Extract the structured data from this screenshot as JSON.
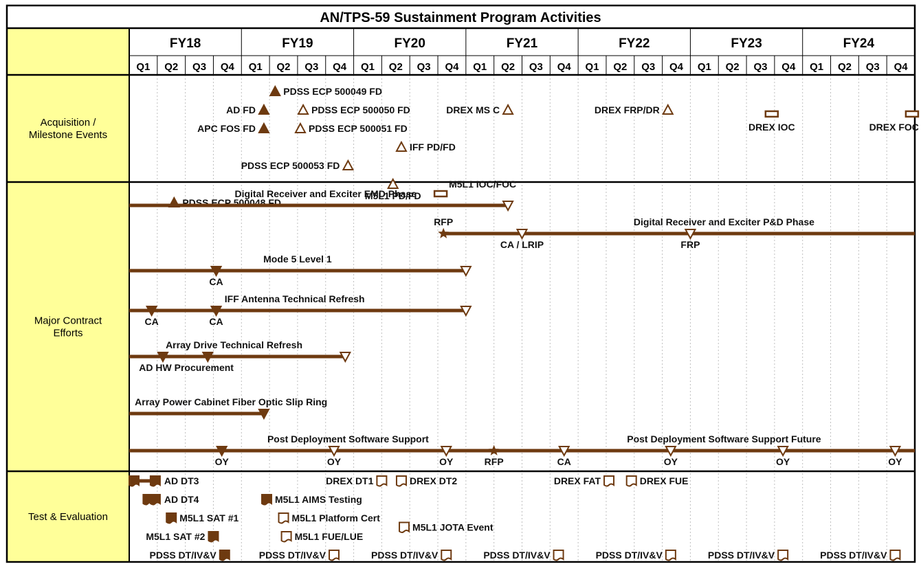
{
  "chart_data": {
    "type": "gantt",
    "title": "AN/TPS-59 Sustainment Program Activities",
    "fiscal_years": [
      "FY18",
      "FY19",
      "FY20",
      "FY21",
      "FY22",
      "FY23",
      "FY24"
    ],
    "quarters": [
      "Q1",
      "Q2",
      "Q3",
      "Q4"
    ],
    "colors": {
      "brown": "#6E3A10",
      "header_fill": "#FFFF99",
      "grid": "#000000"
    },
    "sections": [
      {
        "label": "Acquisition / Milestone Events",
        "lines": [
          "Acquisition /",
          "Milestone Events"
        ],
        "items": [
          {
            "kind": "milestone",
            "symbol": "filled-triangle",
            "q": 5.2,
            "row": 0,
            "label": "PDSS ECP 500049 FD",
            "label_side": "right"
          },
          {
            "kind": "milestone",
            "symbol": "filled-triangle",
            "q": 4.8,
            "row": 1,
            "label": "AD FD",
            "label_side": "left"
          },
          {
            "kind": "milestone",
            "symbol": "open-triangle",
            "q": 6.2,
            "row": 1,
            "label": "PDSS ECP 500050 FD",
            "label_side": "right"
          },
          {
            "kind": "milestone",
            "symbol": "open-triangle",
            "q": 13.5,
            "row": 1,
            "label": "DREX MS C",
            "label_side": "left"
          },
          {
            "kind": "milestone",
            "symbol": "open-triangle",
            "q": 19.2,
            "row": 1,
            "label": "DREX FRP/DR",
            "label_side": "left"
          },
          {
            "kind": "milestone",
            "symbol": "open-rect",
            "q": 22.9,
            "row": 0.7,
            "label": "DREX IOC",
            "label_side": "below"
          },
          {
            "kind": "milestone",
            "symbol": "open-rect",
            "q": 27.9,
            "row": 0.7,
            "label": "DREX FOC",
            "label_side": "below-left"
          },
          {
            "kind": "milestone",
            "symbol": "filled-triangle",
            "q": 4.8,
            "row": 2,
            "label": "APC FOS FD",
            "label_side": "left"
          },
          {
            "kind": "milestone",
            "symbol": "open-triangle",
            "q": 6.1,
            "row": 2,
            "label": "PDSS ECP 500051 FD",
            "label_side": "right"
          },
          {
            "kind": "milestone",
            "symbol": "open-triangle",
            "q": 9.7,
            "row": 3,
            "label": "IFF PD/FD",
            "label_side": "right"
          },
          {
            "kind": "milestone",
            "symbol": "open-triangle",
            "q": 7.8,
            "row": 4,
            "label": "PDSS ECP 500053 FD",
            "label_side": "left"
          },
          {
            "kind": "milestone",
            "symbol": "open-triangle",
            "q": 9.4,
            "row": 5,
            "label": "M5L1 PD/FD",
            "label_side": "below"
          },
          {
            "kind": "milestone",
            "symbol": "open-rect",
            "q": 11.1,
            "row": 5,
            "label": "M5L1 IOC/FOC",
            "label_side": "right"
          },
          {
            "kind": "milestone",
            "symbol": "filled-triangle",
            "q": 1.6,
            "row": 6,
            "label": "PDSS ECP 500048 FD",
            "label_side": "right"
          }
        ]
      },
      {
        "label": "Major Contract Efforts",
        "lines": [
          "Major Contract",
          "Efforts"
        ],
        "bars": [
          {
            "name": "Digital Receiver and Exciter EMD Phase",
            "start": 0,
            "end": 13.5,
            "markers": [
              {
                "q": 13.5,
                "type": "open",
                "label": ""
              }
            ]
          },
          {
            "name": "Digital Receiver and Exciter P&D Phase",
            "start": 11.2,
            "end": 28,
            "markers": [
              {
                "q": 11.2,
                "type": "star",
                "label": "RFP",
                "label_pos": "above"
              },
              {
                "q": 14.0,
                "type": "open",
                "label": "CA / LRIP"
              },
              {
                "q": 20.0,
                "type": "open",
                "label": "FRP"
              }
            ]
          },
          {
            "name": "Mode 5 Level 1",
            "start": 0,
            "end": 12.0,
            "markers": [
              {
                "q": 3.1,
                "type": "filled",
                "label": "CA"
              },
              {
                "q": 12.0,
                "type": "open",
                "label": ""
              }
            ]
          },
          {
            "name": "IFF Antenna Technical Refresh",
            "start": 0,
            "end": 12.0,
            "markers": [
              {
                "q": 0.8,
                "type": "filled",
                "label": "CA"
              },
              {
                "q": 3.1,
                "type": "filled",
                "label": "CA"
              },
              {
                "q": 12.0,
                "type": "open",
                "label": ""
              }
            ]
          },
          {
            "name": "Array Drive Technical Refresh",
            "start": 0,
            "end": 7.7,
            "markers": [
              {
                "q": 1.2,
                "type": "filled",
                "label": ""
              },
              {
                "q": 2.8,
                "type": "filled",
                "label": ""
              },
              {
                "q": 7.7,
                "type": "open",
                "label": ""
              }
            ],
            "note": "AD HW Procurement"
          },
          {
            "name": "Array Power Cabinet Fiber Optic Slip Ring",
            "start": 0,
            "end": 4.8,
            "markers": [
              {
                "q": 4.8,
                "type": "filled",
                "label": ""
              }
            ]
          },
          {
            "name": "Post Deployment Software Support",
            "start": 0,
            "end": 28,
            "name2": "Post Deployment Software Support Future",
            "markers": [
              {
                "q": 3.3,
                "type": "filled",
                "label": "OY"
              },
              {
                "q": 7.3,
                "type": "open",
                "label": "OY"
              },
              {
                "q": 11.3,
                "type": "open",
                "label": "OY"
              },
              {
                "q": 13.0,
                "type": "star",
                "label": "RFP"
              },
              {
                "q": 15.5,
                "type": "open",
                "label": "CA"
              },
              {
                "q": 19.3,
                "type": "open",
                "label": "OY"
              },
              {
                "q": 23.3,
                "type": "open",
                "label": "OY"
              },
              {
                "q": 27.3,
                "type": "open",
                "label": "OY"
              }
            ]
          }
        ]
      },
      {
        "label": "Test & Evaluation",
        "lines": [
          "Test & Evaluation"
        ],
        "items": [
          {
            "kind": "test",
            "symbol": "filled-range",
            "q": 0,
            "q2": 1.1,
            "row": 0,
            "label": "AD DT3",
            "label_side": "right"
          },
          {
            "kind": "test",
            "symbol": "filled-range",
            "q": 0.5,
            "q2": 1.1,
            "row": 1,
            "label": "AD DT4",
            "label_side": "right"
          },
          {
            "kind": "test",
            "symbol": "filled-doc",
            "q": 1.5,
            "row": 2,
            "label": "M5L1 SAT #1",
            "label_side": "right"
          },
          {
            "kind": "test",
            "symbol": "filled-doc",
            "q": 3.0,
            "row": 3,
            "label": "M5L1 SAT #2",
            "label_side": "left"
          },
          {
            "kind": "test",
            "symbol": "filled-doc",
            "q": 3.4,
            "row": 4,
            "label": "PDSS DT/IV&V",
            "label_side": "left"
          },
          {
            "kind": "test",
            "symbol": "filled-doc",
            "q": 4.9,
            "row": 1,
            "label": "M5L1 AIMS Testing",
            "label_side": "right"
          },
          {
            "kind": "test",
            "symbol": "open-doc",
            "q": 5.5,
            "row": 2,
            "label": "M5L1 Platform Cert",
            "label_side": "right"
          },
          {
            "kind": "test",
            "symbol": "open-doc",
            "q": 5.6,
            "row": 3,
            "label": "M5L1 FUE/LUE",
            "label_side": "right"
          },
          {
            "kind": "test",
            "symbol": "open-doc",
            "q": 7.3,
            "row": 4,
            "label": "PDSS DT/IV&V",
            "label_side": "left"
          },
          {
            "kind": "test",
            "symbol": "open-doc",
            "q": 9.0,
            "row": 0,
            "label": "DREX DT1",
            "label_side": "left"
          },
          {
            "kind": "test",
            "symbol": "open-doc",
            "q": 9.7,
            "row": 0,
            "label": "DREX DT2",
            "label_side": "right"
          },
          {
            "kind": "test",
            "symbol": "open-doc",
            "q": 9.8,
            "row": 2.5,
            "label": "M5L1 JOTA Event",
            "label_side": "right"
          },
          {
            "kind": "test",
            "symbol": "open-doc",
            "q": 11.3,
            "row": 4,
            "label": "PDSS DT/IV&V",
            "label_side": "left"
          },
          {
            "kind": "test",
            "symbol": "open-doc",
            "q": 15.3,
            "row": 4,
            "label": "PDSS DT/IV&V",
            "label_side": "left"
          },
          {
            "kind": "test",
            "symbol": "open-doc",
            "q": 17.1,
            "row": 0,
            "label": "DREX FAT",
            "label_side": "left"
          },
          {
            "kind": "test",
            "symbol": "open-doc",
            "q": 17.9,
            "row": 0,
            "label": "DREX FUE",
            "label_side": "right"
          },
          {
            "kind": "test",
            "symbol": "open-doc",
            "q": 19.3,
            "row": 4,
            "label": "PDSS DT/IV&V",
            "label_side": "left"
          },
          {
            "kind": "test",
            "symbol": "open-doc",
            "q": 23.3,
            "row": 4,
            "label": "PDSS DT/IV&V",
            "label_side": "left"
          },
          {
            "kind": "test",
            "symbol": "open-doc",
            "q": 27.3,
            "row": 4,
            "label": "PDSS DT/IV&V",
            "label_side": "left"
          }
        ]
      }
    ]
  }
}
